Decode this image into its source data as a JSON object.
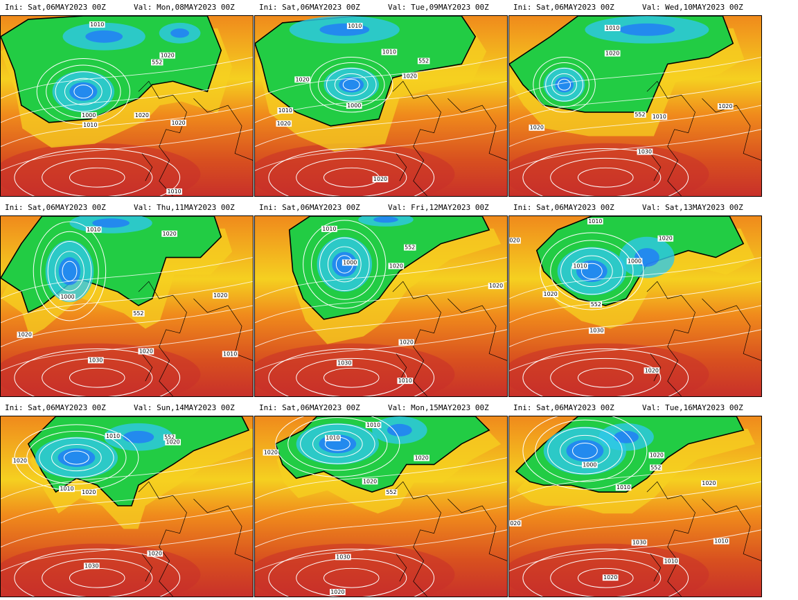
{
  "panels": [
    {
      "ini": "Ini: Sat,06MAY2023 00Z",
      "val": "Val: Mon,08MAY2023 00Z",
      "labels": [
        "1010",
        "1020",
        "552",
        "1000",
        "1010",
        "1020",
        "1020",
        "1010"
      ]
    },
    {
      "ini": "Ini: Sat,06MAY2023 00Z",
      "val": "Val: Tue,09MAY2023 00Z",
      "labels": [
        "1010",
        "552",
        "1010",
        "1020",
        "1000",
        "1010",
        "1020",
        "1020",
        "1020"
      ]
    },
    {
      "ini": "Ini: Sat,06MAY2023 00Z",
      "val": "Val: Wed,10MAY2023 00Z",
      "labels": [
        "1010",
        "552",
        "1010",
        "1020",
        "1020",
        "1020",
        "1030"
      ]
    },
    {
      "ini": "Ini: Sat,06MAY2023 00Z",
      "val": "Val: Thu,11MAY2023 00Z",
      "labels": [
        "1010",
        "1020",
        "1000",
        "552",
        "1020",
        "1020",
        "1030",
        "1010",
        "1020"
      ]
    },
    {
      "ini": "Ini: Sat,06MAY2023 00Z",
      "val": "Val: Fri,12MAY2023 00Z",
      "labels": [
        "1010",
        "552",
        "1000",
        "1020",
        "1020",
        "1020",
        "1030",
        "1010"
      ]
    },
    {
      "ini": "Ini: Sat,06MAY2023 00Z",
      "val": "Val: Sat,13MAY2023 00Z",
      "labels": [
        "1010",
        "020",
        "1020",
        "1010",
        "1000",
        "1020",
        "552",
        "1030",
        "1020"
      ]
    },
    {
      "ini": "Ini: Sat,06MAY2023 00Z",
      "val": "Val: Sun,14MAY2023 00Z",
      "labels": [
        "1010",
        "552",
        "1020",
        "1020",
        "1010",
        "1020",
        "1020",
        "1030"
      ]
    },
    {
      "ini": "Ini: Sat,06MAY2023 00Z",
      "val": "Val: Mon,15MAY2023 00Z",
      "labels": [
        "1010",
        "1010",
        "1020",
        "1020",
        "1020",
        "552",
        "1030",
        "1020"
      ]
    },
    {
      "ini": "Ini: Sat,06MAY2023 00Z",
      "val": "Val: Tue,16MAY2023 00Z",
      "labels": [
        "1000",
        "1020",
        "552",
        "1010",
        "1020",
        "020",
        "1030",
        "1010",
        "1010",
        "1020"
      ]
    }
  ],
  "colors": {
    "low_blue": "#1f6fff",
    "cyan": "#30c8e8",
    "green": "#22cc44",
    "yellow": "#f5d020",
    "orange": "#f08a1c",
    "red": "#c8302a",
    "contour": "#ffffff",
    "boundary_552": "#000000"
  }
}
